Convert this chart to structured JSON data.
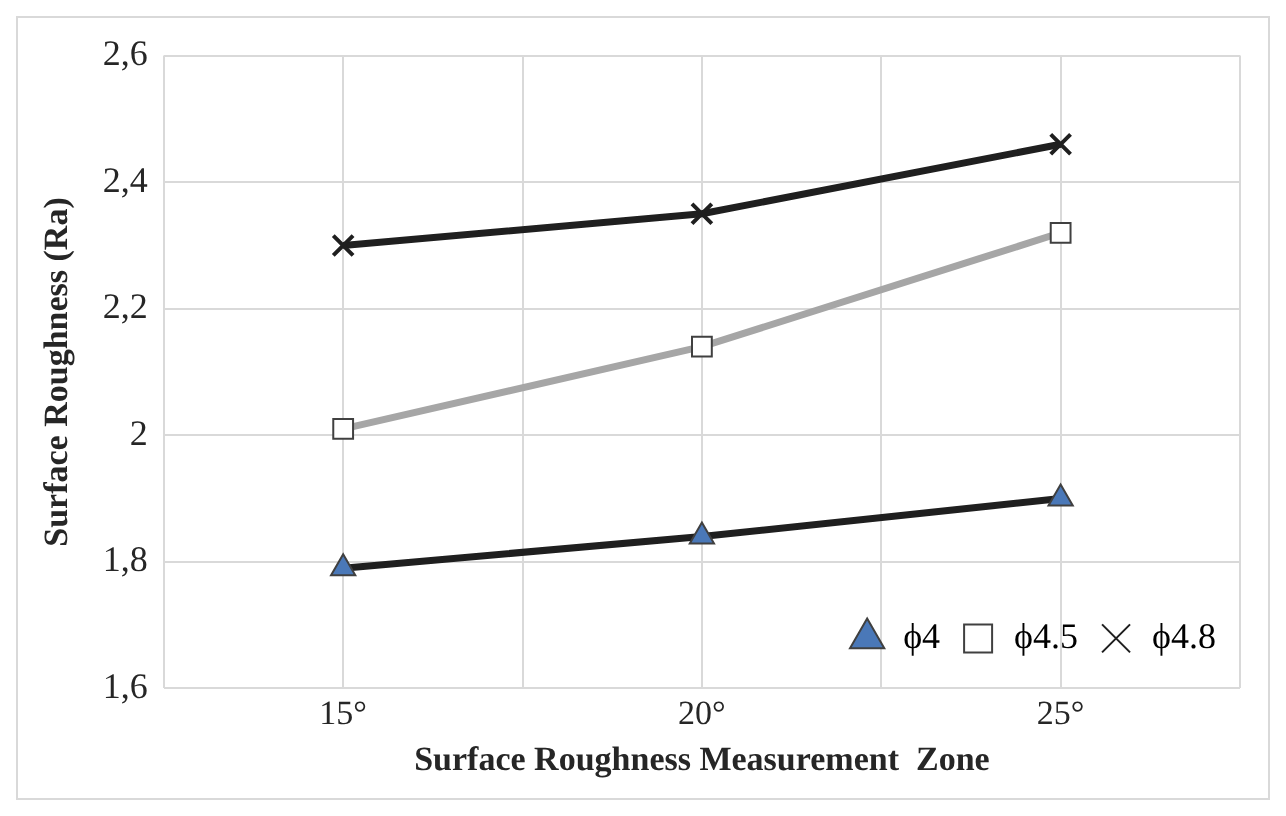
{
  "chart_data": {
    "type": "line",
    "xlabel": "Surface Roughness Measurement  Zone",
    "ylabel": "Surface Roughness (Ra)",
    "x": [
      15,
      20,
      25
    ],
    "xlim": [
      12.5,
      27.5
    ],
    "xticks": [
      {
        "value": 12.5,
        "label": null
      },
      {
        "value": 15,
        "label": "15°"
      },
      {
        "value": 17.5,
        "label": null
      },
      {
        "value": 20,
        "label": "20°"
      },
      {
        "value": 22.5,
        "label": null
      },
      {
        "value": 25,
        "label": "25°"
      },
      {
        "value": 27.5,
        "label": null
      }
    ],
    "ylim": [
      1.6,
      2.6
    ],
    "yticks": [
      {
        "value": 1.6,
        "label": "1,6"
      },
      {
        "value": 1.8,
        "label": "1,8"
      },
      2,
      {
        "value": 2.2,
        "label": "2,2"
      },
      {
        "value": 2.4,
        "label": "2,4"
      },
      {
        "value": 2.6,
        "label": "2,6"
      }
    ],
    "grid": true,
    "legend": "bottom right",
    "series": [
      {
        "name": "ϕ4",
        "color": "#1f1f1f",
        "colors": [
          "#4a78b8",
          "#4a78b8",
          "#4a78b8"
        ],
        "marker": "triangle",
        "values": [
          1.79,
          1.84,
          1.9
        ]
      },
      {
        "name": "ϕ4.5",
        "color": "#a6a6a6",
        "colors": [
          "#ffffff",
          "#ffffff",
          "#ffffff"
        ],
        "marker": "square",
        "values": [
          2.01,
          2.14,
          2.32
        ]
      },
      {
        "name": "ϕ4.8",
        "color": "#1f1f1f",
        "colors": [
          "#1f1f1f",
          "#1f1f1f",
          "#1f1f1f"
        ],
        "marker": "cross",
        "values": [
          2.3,
          2.35,
          2.46
        ]
      }
    ]
  }
}
